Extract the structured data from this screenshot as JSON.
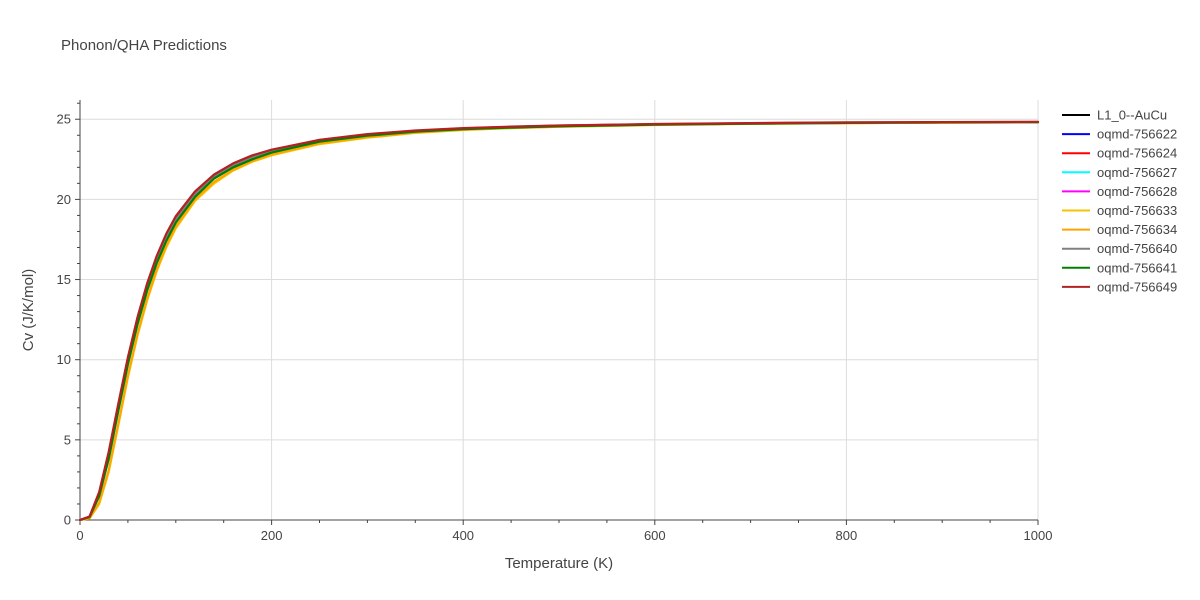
{
  "chart_data": {
    "type": "line",
    "title": "Phonon/QHA Predictions",
    "xlabel": "Temperature (K)",
    "ylabel": "Cv (J/K/mol)",
    "xlim": [
      0,
      1000
    ],
    "ylim": [
      0,
      26.2
    ],
    "xticks": [
      0,
      200,
      400,
      600,
      800,
      1000
    ],
    "yticks": [
      0,
      5,
      10,
      15,
      20,
      25
    ],
    "grid": true,
    "legend_position": "right",
    "x": [
      0,
      10,
      20,
      30,
      40,
      50,
      60,
      70,
      80,
      90,
      100,
      120,
      140,
      160,
      180,
      200,
      250,
      300,
      350,
      400,
      450,
      500,
      600,
      700,
      800,
      900,
      1000
    ],
    "series": [
      {
        "name": "L1_0--AuCu",
        "color": "#000000",
        "values": [
          0,
          0.2,
          1.6,
          4.0,
          7.0,
          9.9,
          12.4,
          14.5,
          16.2,
          17.6,
          18.7,
          20.3,
          21.4,
          22.1,
          22.6,
          23.0,
          23.65,
          24.0,
          24.25,
          24.4,
          24.5,
          24.57,
          24.67,
          24.73,
          24.77,
          24.8,
          24.82
        ]
      },
      {
        "name": "oqmd-756622",
        "color": "#0000ff",
        "values": [
          0,
          0.2,
          1.6,
          4.0,
          7.0,
          9.9,
          12.4,
          14.5,
          16.2,
          17.6,
          18.7,
          20.3,
          21.4,
          22.1,
          22.6,
          23.0,
          23.65,
          24.0,
          24.25,
          24.4,
          24.5,
          24.57,
          24.67,
          24.73,
          24.77,
          24.8,
          24.82
        ]
      },
      {
        "name": "oqmd-756624",
        "color": "#ff0000",
        "values": [
          0,
          0.22,
          1.7,
          4.2,
          7.2,
          10.1,
          12.6,
          14.7,
          16.4,
          17.8,
          18.9,
          20.45,
          21.5,
          22.2,
          22.7,
          23.05,
          23.7,
          24.05,
          24.28,
          24.43,
          24.52,
          24.6,
          24.69,
          24.75,
          24.79,
          24.81,
          24.83
        ]
      },
      {
        "name": "oqmd-756627",
        "color": "#00ffff",
        "values": [
          0,
          0.2,
          1.6,
          4.0,
          7.0,
          9.9,
          12.4,
          14.5,
          16.2,
          17.6,
          18.7,
          20.3,
          21.4,
          22.1,
          22.6,
          23.0,
          23.65,
          24.0,
          24.25,
          24.4,
          24.5,
          24.57,
          24.67,
          24.73,
          24.77,
          24.8,
          24.82
        ]
      },
      {
        "name": "oqmd-756628",
        "color": "#ff00ff",
        "values": [
          0,
          0.2,
          1.6,
          4.0,
          7.0,
          9.9,
          12.4,
          14.5,
          16.2,
          17.6,
          18.7,
          20.3,
          21.4,
          22.1,
          22.6,
          23.0,
          23.65,
          24.0,
          24.25,
          24.4,
          24.5,
          24.57,
          24.67,
          24.73,
          24.77,
          24.8,
          24.82
        ]
      },
      {
        "name": "oqmd-756633",
        "color": "#f5c400",
        "values": [
          0,
          0.1,
          1.0,
          3.0,
          5.9,
          8.9,
          11.5,
          13.7,
          15.5,
          17.0,
          18.2,
          19.9,
          21.0,
          21.8,
          22.35,
          22.75,
          23.45,
          23.85,
          24.15,
          24.33,
          24.45,
          24.53,
          24.64,
          24.71,
          24.76,
          24.79,
          24.81
        ]
      },
      {
        "name": "oqmd-756634",
        "color": "#ffa500",
        "values": [
          0,
          0.12,
          1.1,
          3.1,
          6.0,
          9.0,
          11.6,
          13.8,
          15.6,
          17.1,
          18.3,
          20.0,
          21.1,
          21.85,
          22.4,
          22.8,
          23.5,
          23.88,
          24.17,
          24.35,
          24.46,
          24.54,
          24.65,
          24.72,
          24.76,
          24.79,
          24.81
        ]
      },
      {
        "name": "oqmd-756640",
        "color": "#808080",
        "values": [
          0,
          0.2,
          1.6,
          4.0,
          7.0,
          9.9,
          12.4,
          14.5,
          16.2,
          17.6,
          18.7,
          20.3,
          21.4,
          22.1,
          22.6,
          23.0,
          23.65,
          24.0,
          24.25,
          24.4,
          24.5,
          24.57,
          24.67,
          24.73,
          24.77,
          24.8,
          24.82
        ]
      },
      {
        "name": "oqmd-756641",
        "color": "#008000",
        "values": [
          0,
          0.18,
          1.5,
          3.8,
          6.8,
          9.7,
          12.2,
          14.3,
          16.0,
          17.4,
          18.55,
          20.15,
          21.3,
          22.0,
          22.5,
          22.92,
          23.6,
          23.97,
          24.22,
          24.38,
          24.48,
          24.56,
          24.66,
          24.73,
          24.77,
          24.8,
          24.82
        ]
      },
      {
        "name": "oqmd-756649",
        "color": "#b22222",
        "values": [
          0,
          0.22,
          1.75,
          4.25,
          7.25,
          10.15,
          12.65,
          14.75,
          16.45,
          17.85,
          18.95,
          20.5,
          21.55,
          22.25,
          22.75,
          23.1,
          23.72,
          24.07,
          24.3,
          24.45,
          24.54,
          24.61,
          24.7,
          24.76,
          24.8,
          24.82,
          24.84
        ]
      }
    ]
  }
}
